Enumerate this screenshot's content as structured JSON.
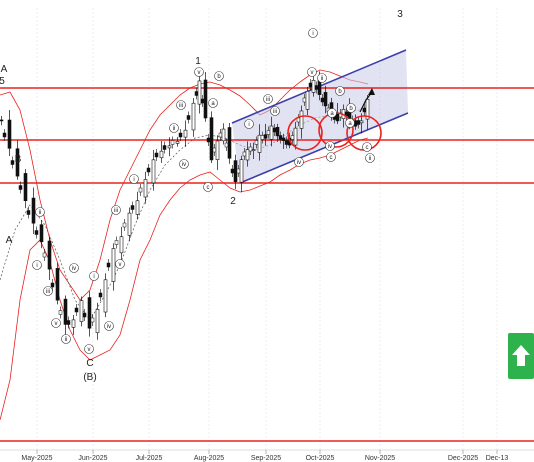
{
  "chart_data": {
    "type": "candlestick",
    "x_axis": {
      "ticks": [
        "May-2025",
        "Jun-2025",
        "Jul-2025",
        "Aug-2025",
        "Sep-2025",
        "Oct-2025",
        "Nov-2025",
        "Dec-2025",
        "Dec-13"
      ]
    },
    "horizontal_levels_color": "#e8231e",
    "channel_color": "#3b3fa8",
    "band_color": "#e8231e",
    "wave_labels_big": [
      "A",
      "5",
      "B",
      "A",
      "C",
      "(B)",
      "1",
      "2",
      "3"
    ],
    "wave_labels_small": [
      "ii",
      "i",
      "iv",
      "iii",
      "v",
      "ii",
      "i",
      "iii",
      "iv",
      "v",
      "i",
      "iii",
      "ii",
      "iv",
      "v",
      "b",
      "a",
      "c",
      "iii",
      "i",
      "iii",
      "v",
      "iv",
      "i",
      "v",
      "ii",
      "b",
      "a",
      "c",
      "iv",
      "b",
      "a",
      "c",
      "ii"
    ],
    "signal": {
      "direction": "up",
      "color": "#2eb24b"
    }
  }
}
